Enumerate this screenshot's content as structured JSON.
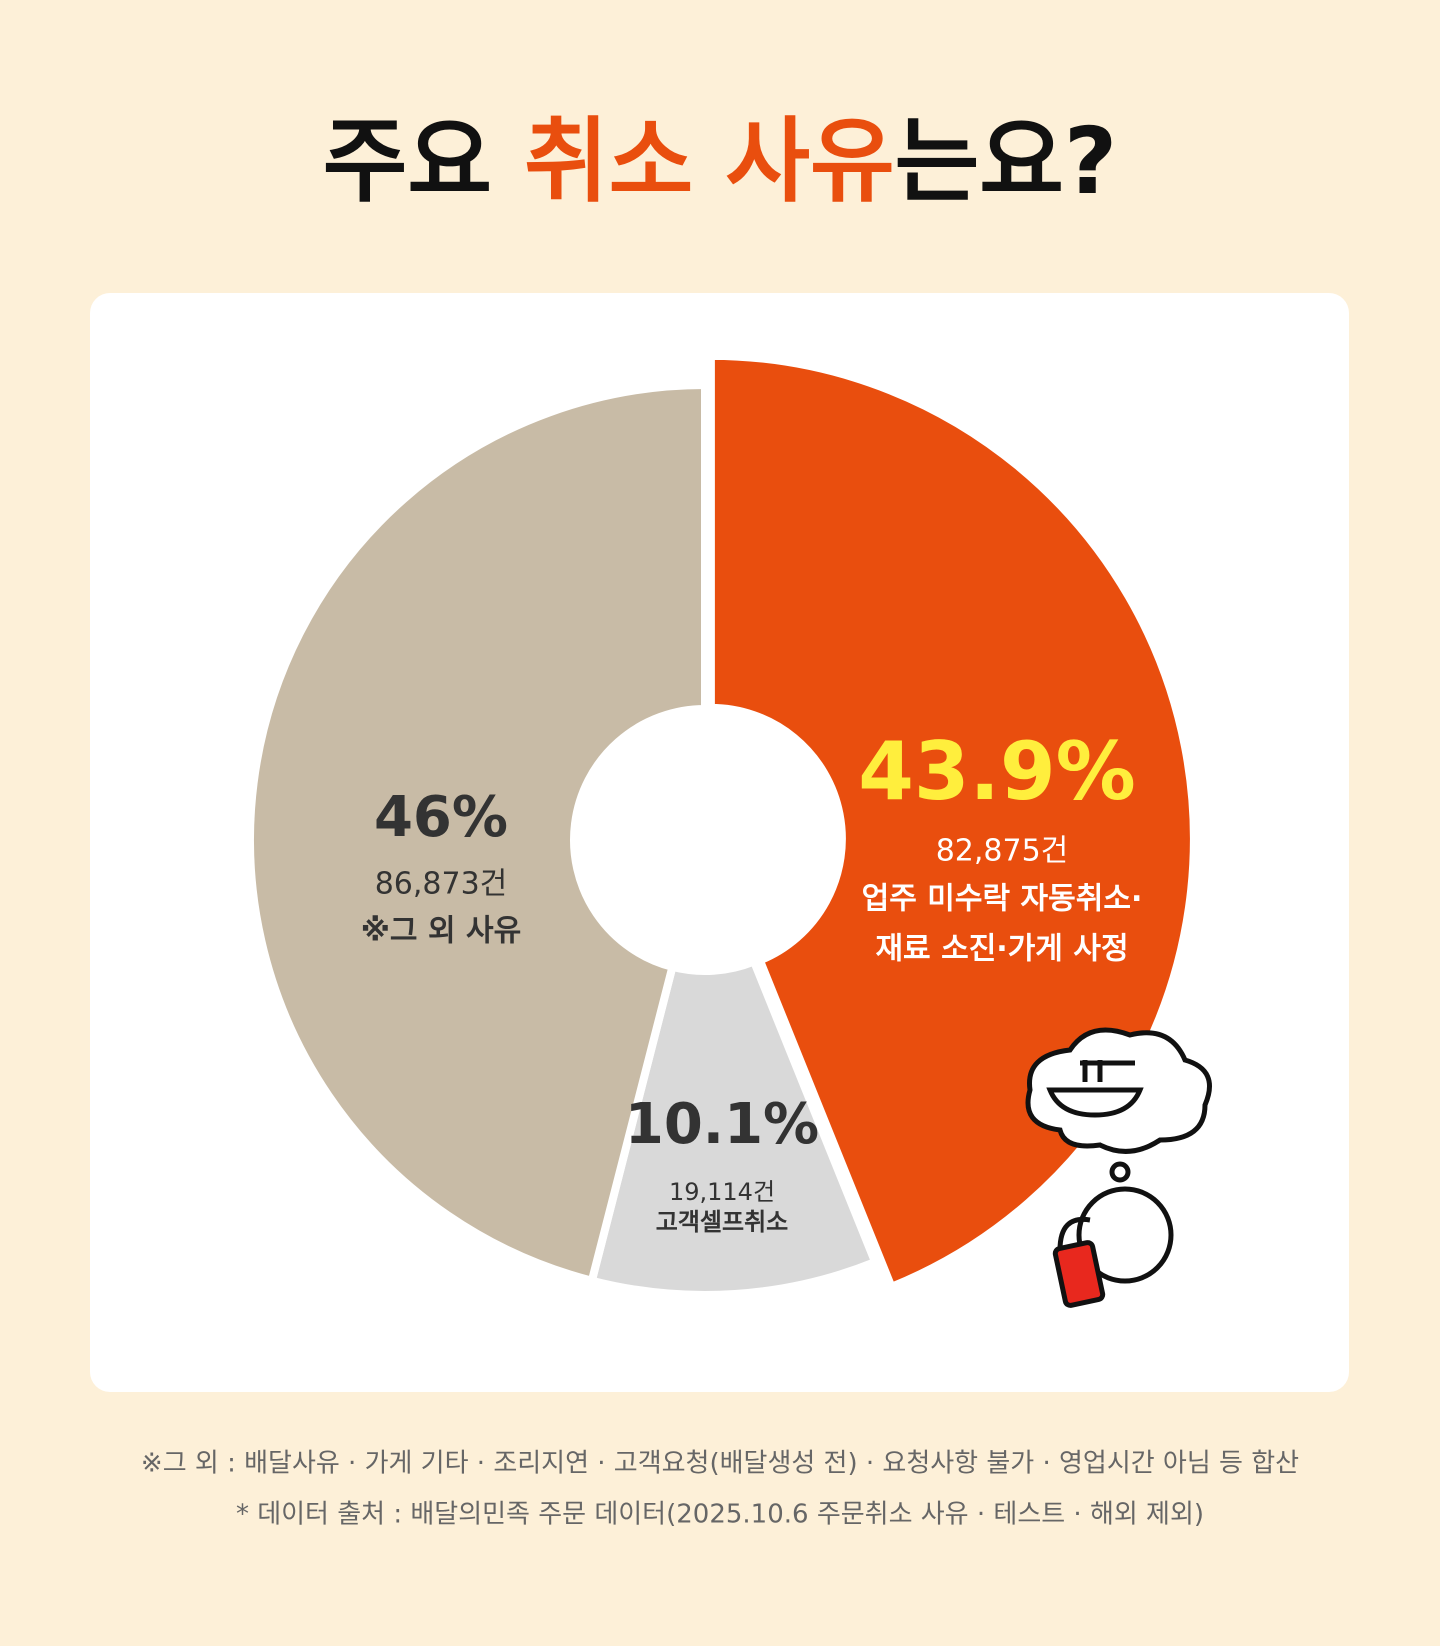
{
  "chart_data": {
    "type": "donut",
    "title": [
      "주요 ",
      "취소 사유",
      "는요?"
    ],
    "categories": [
      [
        "업주 미수락 자동취소·",
        "재료 소진·가게 사정"
      ],
      [
        "고객셀프취소"
      ],
      [
        "※그 외 사유"
      ]
    ],
    "values": [
      43.9,
      10.1,
      46
    ],
    "value_labels": [
      "43.9%",
      "10.1%",
      "46%"
    ],
    "counts": [
      82875,
      19114,
      86873
    ],
    "count_labels": [
      "82,875건",
      "19,114건",
      "86,873건"
    ],
    "colors": [
      "#e94e0e",
      "#d9d9d9",
      "#c8bba6"
    ],
    "label_colors": [
      "#ffee3d",
      "#333333",
      "#333333"
    ],
    "text_colors": [
      "#ffffff",
      "#333333",
      "#333333"
    ],
    "footnotes": [
      "※그 외 : 배달사유 · 가게 기타 · 조리지연 · 고객요청(배달생성 전) · 요청사항 불가 · 영업시간 아님 등 합산",
      "* 데이터 출처 : 배달의민족 주문 데이터(2025.10.6 주문취소 사유 · 테스트 · 해외 제외)"
    ]
  }
}
